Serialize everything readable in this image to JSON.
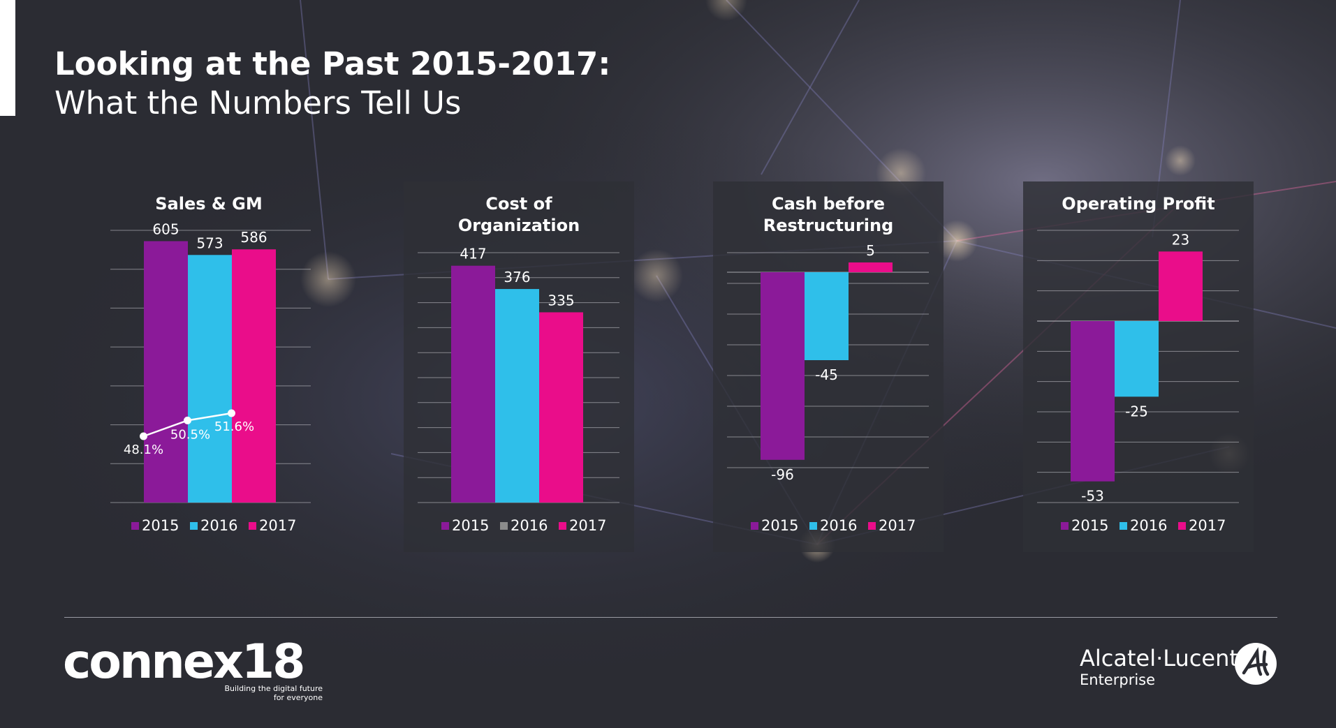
{
  "header": {
    "title_line1": "Looking at the Past 2015-2017:",
    "title_line2": "What the Numbers Tell Us"
  },
  "colors": {
    "2015": "#8b1a99",
    "2016": "#2fbfea",
    "2017": "#ea0d8a"
  },
  "chart_data": [
    {
      "type": "bar",
      "title": "Sales & GM",
      "categories": [
        "2015",
        "2016",
        "2017"
      ],
      "values": [
        605,
        573,
        586
      ],
      "value_labels": [
        "605",
        "573",
        "586"
      ],
      "gm": {
        "values": [
          48.1,
          50.5,
          51.6
        ],
        "labels": [
          "48.1%",
          "50.5%",
          "51.6%"
        ]
      },
      "legend": [
        "2015",
        "2016",
        "2017"
      ],
      "legend_colors": [
        "#8b1a99",
        "#2fbfea",
        "#ea0d8a"
      ]
    },
    {
      "type": "bar",
      "title": "Cost of Organization",
      "categories": [
        "2015",
        "2016",
        "2017"
      ],
      "values": [
        417,
        376,
        335
      ],
      "value_labels": [
        "417",
        "376",
        "335"
      ],
      "legend": [
        "2015",
        "2016",
        "2017"
      ],
      "legend_colors": [
        "#8b1a99",
        "#8c8c8c",
        "#ea0d8a"
      ]
    },
    {
      "type": "bar",
      "title": "Cash before Restructuring",
      "categories": [
        "2015",
        "2016",
        "2017"
      ],
      "values": [
        -96,
        -45,
        5
      ],
      "value_labels": [
        "-96",
        "-45",
        "5"
      ],
      "legend": [
        "2015",
        "2016",
        "2017"
      ],
      "legend_colors": [
        "#8b1a99",
        "#2fbfea",
        "#ea0d8a"
      ]
    },
    {
      "type": "bar",
      "title": "Operating Profit",
      "categories": [
        "2015",
        "2016",
        "2017"
      ],
      "values": [
        -53,
        -25,
        23
      ],
      "value_labels": [
        "-53",
        "-25",
        "23"
      ],
      "legend": [
        "2015",
        "2016",
        "2017"
      ],
      "legend_colors": [
        "#8b1a99",
        "#2fbfea",
        "#ea0d8a"
      ]
    }
  ],
  "footer": {
    "event_logo": "connex18",
    "tagline_line1": "Building the digital future",
    "tagline_line2": "for everyone",
    "brand_name": "Alcatel·Lucent",
    "brand_sub": "Enterprise"
  }
}
